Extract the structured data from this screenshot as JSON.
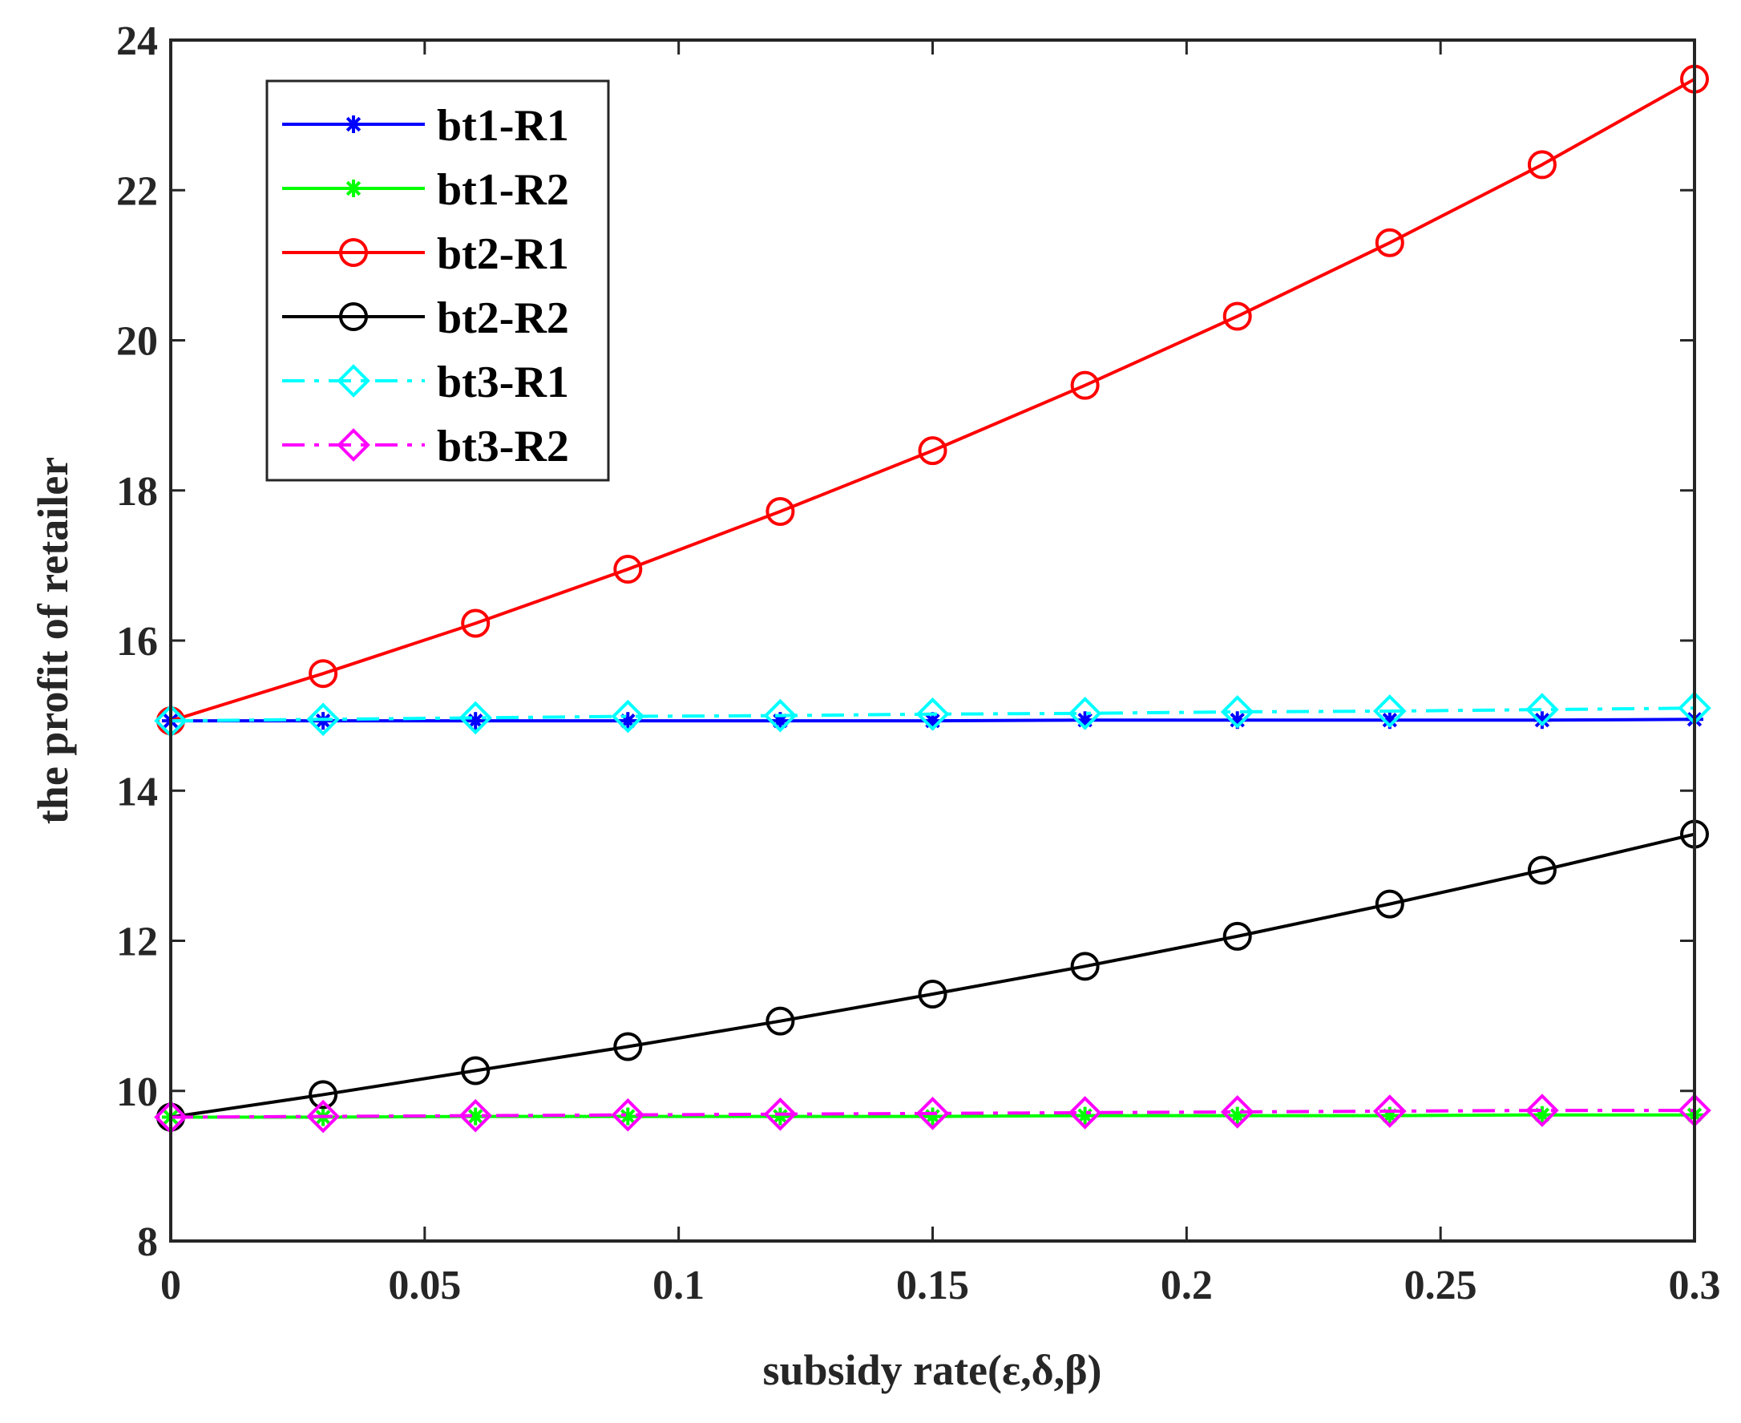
{
  "chart_data": {
    "type": "line",
    "title": "",
    "xlabel": "subsidy rate(ε,δ,β)",
    "ylabel": "the profit of retailer",
    "xlim": [
      0,
      0.3
    ],
    "ylim": [
      8,
      24
    ],
    "grid": false,
    "legend_position": "top-left",
    "xticks": [
      0,
      0.05,
      0.1,
      0.15,
      0.2,
      0.25,
      0.3
    ],
    "xtick_labels": [
      "0",
      "0.05",
      "0.1",
      "0.15",
      "0.2",
      "0.25",
      "0.3"
    ],
    "yticks": [
      8,
      10,
      12,
      14,
      16,
      18,
      20,
      22,
      24
    ],
    "ytick_labels": [
      "8",
      "10",
      "12",
      "14",
      "16",
      "18",
      "20",
      "22",
      "24"
    ],
    "x": [
      0,
      0.03,
      0.06,
      0.09,
      0.12,
      0.15,
      0.18,
      0.21,
      0.24,
      0.27,
      0.3
    ],
    "series": [
      {
        "name": "bt1-R1",
        "color": "#0000ff",
        "marker": "asterisk",
        "line_style": "solid",
        "values": [
          14.93,
          14.93,
          14.93,
          14.93,
          14.93,
          14.93,
          14.94,
          14.94,
          14.94,
          14.94,
          14.95
        ]
      },
      {
        "name": "bt1-R2",
        "color": "#00ff00",
        "marker": "asterisk",
        "line_style": "solid",
        "values": [
          9.65,
          9.65,
          9.66,
          9.66,
          9.66,
          9.66,
          9.67,
          9.67,
          9.67,
          9.68,
          9.68
        ]
      },
      {
        "name": "bt2-R1",
        "color": "#ff0000",
        "marker": "circle",
        "line_style": "solid",
        "values": [
          14.93,
          15.56,
          16.23,
          16.95,
          17.72,
          18.53,
          19.4,
          20.32,
          21.3,
          22.34,
          23.48
        ]
      },
      {
        "name": "bt2-R2",
        "color": "#000000",
        "marker": "circle",
        "line_style": "solid",
        "values": [
          9.65,
          9.95,
          10.27,
          10.59,
          10.93,
          11.29,
          11.66,
          12.06,
          12.49,
          12.94,
          13.42
        ]
      },
      {
        "name": "bt3-R1",
        "color": "#00ffff",
        "marker": "diamond",
        "line_style": "dashdot",
        "values": [
          14.93,
          14.95,
          14.97,
          14.99,
          15.0,
          15.02,
          15.03,
          15.05,
          15.06,
          15.08,
          15.1
        ]
      },
      {
        "name": "bt3-R2",
        "color": "#ff00ff",
        "marker": "diamond",
        "line_style": "dashdot",
        "values": [
          9.65,
          9.66,
          9.67,
          9.68,
          9.69,
          9.7,
          9.71,
          9.72,
          9.73,
          9.74,
          9.74
        ]
      }
    ]
  }
}
